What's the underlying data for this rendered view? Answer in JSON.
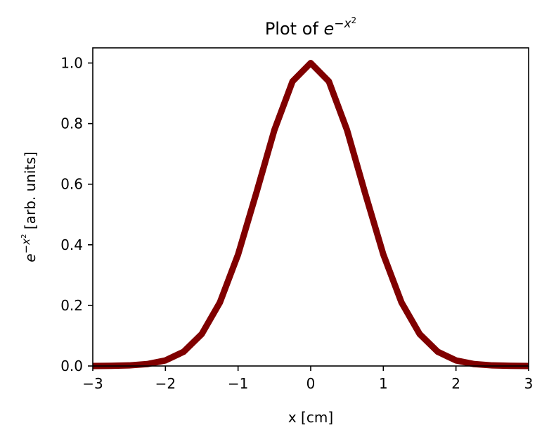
{
  "chart_data": {
    "type": "line",
    "title": {
      "prefix": "Plot of ",
      "base": "e",
      "exponent": "−x",
      "exponent_power": "2"
    },
    "xlabel": "x [cm]",
    "ylabel": {
      "base": "e",
      "exponent": "−x",
      "exponent_power": "2",
      "suffix": " [arb. units]"
    },
    "xlim": [
      -3,
      3
    ],
    "ylim": [
      0,
      1.05
    ],
    "x_ticks": [
      -3,
      -2,
      -1,
      0,
      1,
      2,
      3
    ],
    "x_tick_labels": [
      "−3",
      "−2",
      "−1",
      "0",
      "1",
      "2",
      "3"
    ],
    "y_ticks": [
      0.0,
      0.2,
      0.4,
      0.6,
      0.8,
      1.0
    ],
    "y_tick_labels": [
      "0.0",
      "0.2",
      "0.4",
      "0.6",
      "0.8",
      "1.0"
    ],
    "grid": false,
    "legend": "none",
    "series": [
      {
        "color": "#800000",
        "x": [
          -3.0,
          -2.75,
          -2.5,
          -2.25,
          -2.0,
          -1.75,
          -1.5,
          -1.25,
          -1.0,
          -0.75,
          -0.5,
          -0.25,
          0.0,
          0.25,
          0.5,
          0.75,
          1.0,
          1.25,
          1.5,
          1.75,
          2.0,
          2.25,
          2.5,
          2.75,
          3.0
        ],
        "y": [
          0.0001,
          0.0005,
          0.0019,
          0.0063,
          0.0183,
          0.0468,
          0.1054,
          0.2096,
          0.3679,
          0.5698,
          0.7788,
          0.9394,
          1.0,
          0.9394,
          0.7788,
          0.5698,
          0.3679,
          0.2096,
          0.1054,
          0.0468,
          0.0183,
          0.0063,
          0.0019,
          0.0005,
          0.0001
        ]
      }
    ]
  }
}
